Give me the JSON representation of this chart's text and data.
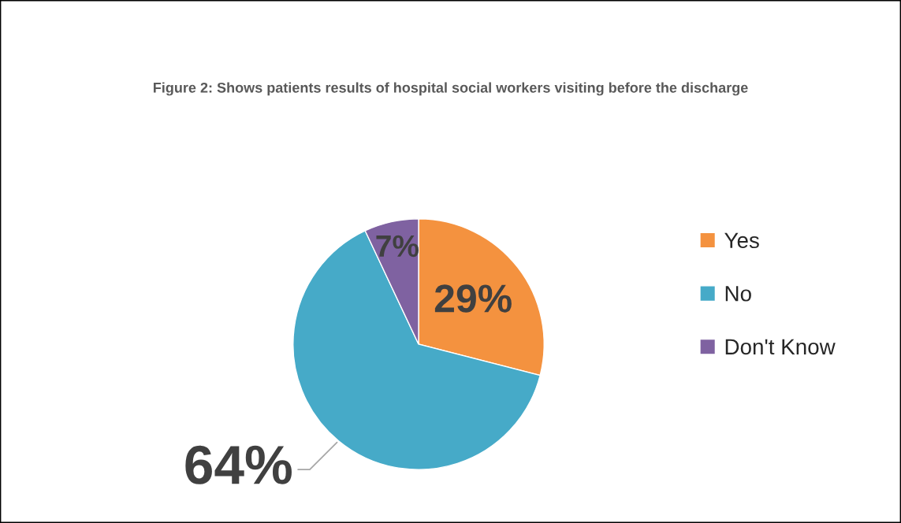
{
  "chart_data": {
    "type": "pie",
    "title": "Figure 2: Shows patients results of hospital social workers visiting before the discharge",
    "categories": [
      "Yes",
      "No",
      "Don't Know"
    ],
    "values": [
      29,
      64,
      7
    ],
    "colors": [
      "#f4923f",
      "#46aac8",
      "#7f62a1"
    ],
    "value_labels": [
      "29%",
      "64%",
      "7%"
    ],
    "legend": "right"
  }
}
